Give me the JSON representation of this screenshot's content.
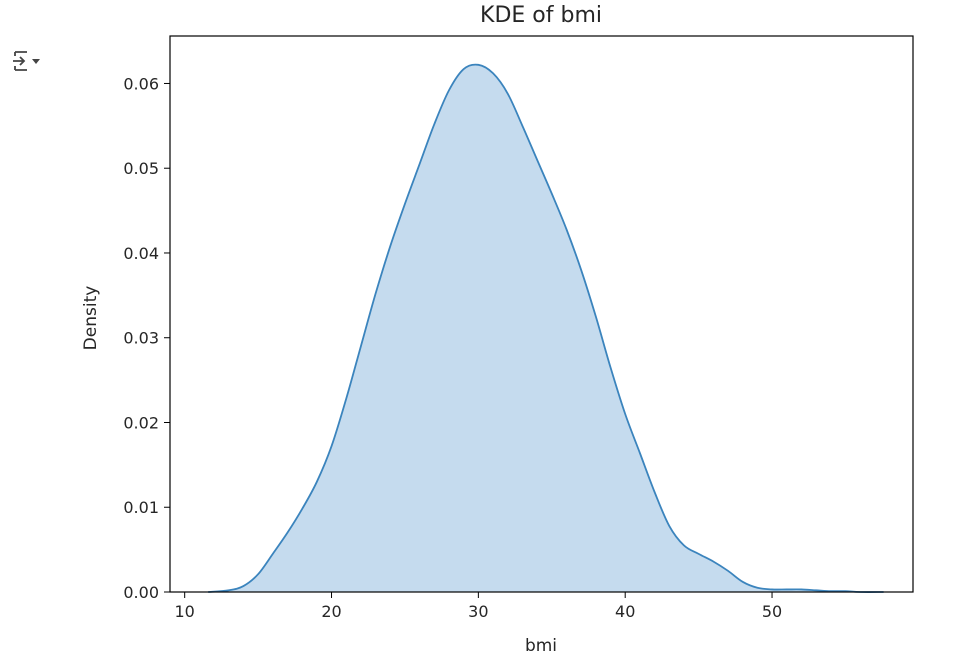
{
  "cell": {
    "output_toggle_icon": "output-toggle-icon"
  },
  "chart_data": {
    "type": "area",
    "title": "KDE of bmi",
    "xlabel": "bmi",
    "ylabel": "Density",
    "xlim": [
      9,
      59.6
    ],
    "ylim": [
      0,
      0.0656
    ],
    "xticks": [
      10,
      20,
      30,
      40,
      50
    ],
    "yticks": [
      0.0,
      0.01,
      0.02,
      0.03,
      0.04,
      0.05,
      0.06
    ],
    "ytick_labels": [
      "0.00",
      "0.01",
      "0.02",
      "0.03",
      "0.04",
      "0.05",
      "0.06"
    ],
    "grid": false,
    "line_color": "#3b84bd",
    "fill_color": "#c5dbee",
    "series": [
      {
        "x": [
          11.6,
          13,
          14,
          15,
          16,
          17,
          18,
          19,
          20,
          21,
          22,
          23,
          24,
          25,
          26,
          27,
          28,
          29,
          30,
          31,
          32,
          33,
          34,
          35,
          36,
          37,
          38,
          39,
          40,
          41,
          42,
          43,
          44,
          45,
          46,
          47,
          48,
          49,
          50,
          51,
          52,
          53,
          54,
          55,
          56,
          57.6
        ],
        "y": [
          0.0,
          0.0002,
          0.0007,
          0.0021,
          0.0045,
          0.007,
          0.0098,
          0.013,
          0.0172,
          0.0228,
          0.029,
          0.0352,
          0.0408,
          0.0458,
          0.0505,
          0.0552,
          0.0592,
          0.0617,
          0.0622,
          0.0612,
          0.0588,
          0.055,
          0.051,
          0.047,
          0.0428,
          0.038,
          0.0325,
          0.0265,
          0.021,
          0.0164,
          0.0118,
          0.0078,
          0.0055,
          0.0045,
          0.0036,
          0.0025,
          0.0012,
          0.0005,
          0.0003,
          0.0003,
          0.0003,
          0.0002,
          0.0001,
          0.0001,
          0.0,
          0.0
        ]
      }
    ]
  }
}
